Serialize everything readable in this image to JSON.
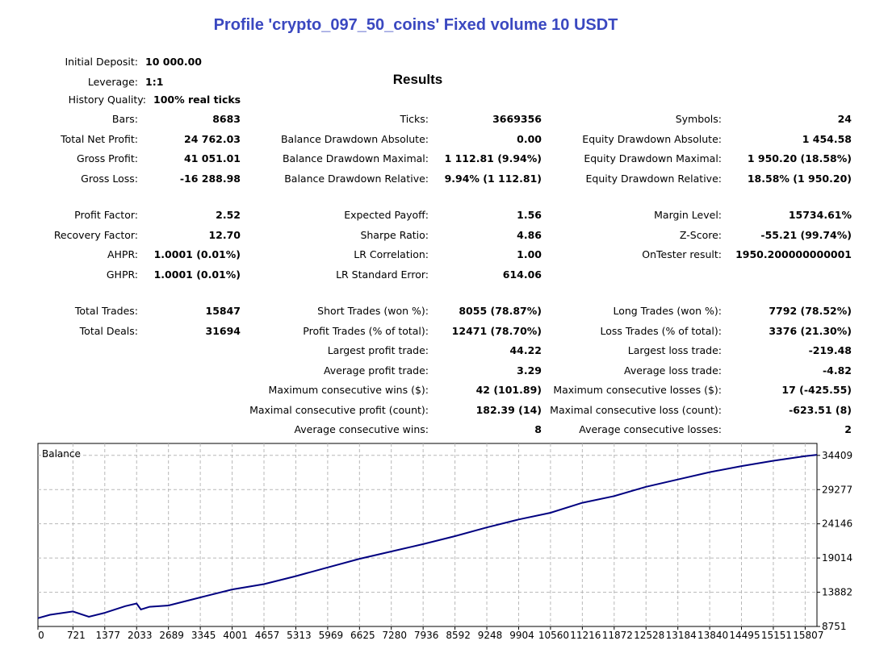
{
  "title": "Profile 'crypto_097_50_coins' Fixed volume 10 USDT",
  "results_heading": "Results",
  "deposit": {
    "initial_deposit": {
      "label": "Initial Deposit:",
      "value": "10 000.00"
    },
    "leverage": {
      "label": "Leverage:",
      "value": "1:1"
    },
    "history_quality": {
      "label": "History Quality:",
      "value": "100% real ticks"
    }
  },
  "col1": [
    {
      "label": "Bars:",
      "value": "8683"
    },
    {
      "label": "Total Net Profit:",
      "value": "24 762.03"
    },
    {
      "label": "Gross Profit:",
      "value": "41 051.01"
    },
    {
      "label": "Gross Loss:",
      "value": "-16 288.98"
    },
    {
      "label": "Profit Factor:",
      "value": "2.52"
    },
    {
      "label": "Recovery Factor:",
      "value": "12.70"
    },
    {
      "label": "AHPR:",
      "value": "1.0001 (0.01%)"
    },
    {
      "label": "GHPR:",
      "value": "1.0001 (0.01%)"
    },
    {
      "label": "Total Trades:",
      "value": "15847"
    },
    {
      "label": "Total Deals:",
      "value": "31694"
    }
  ],
  "col2": [
    {
      "label": "Ticks:",
      "value": "3669356"
    },
    {
      "label": "Balance Drawdown Absolute:",
      "value": "0.00"
    },
    {
      "label": "Balance Drawdown Maximal:",
      "value": "1 112.81 (9.94%)"
    },
    {
      "label": "Balance Drawdown Relative:",
      "value": "9.94% (1 112.81)"
    },
    {
      "label": "Expected Payoff:",
      "value": "1.56"
    },
    {
      "label": "Sharpe Ratio:",
      "value": "4.86"
    },
    {
      "label": "LR Correlation:",
      "value": "1.00"
    },
    {
      "label": "LR Standard Error:",
      "value": "614.06"
    },
    {
      "label": "Short Trades (won %):",
      "value": "8055 (78.87%)"
    },
    {
      "label": "Profit Trades (% of total):",
      "value": "12471 (78.70%)"
    },
    {
      "label": "Largest profit trade:",
      "value": "44.22"
    },
    {
      "label": "Average profit trade:",
      "value": "3.29"
    },
    {
      "label": "Maximum consecutive wins ($):",
      "value": "42 (101.89)"
    },
    {
      "label": "Maximal consecutive profit (count):",
      "value": "182.39 (14)"
    },
    {
      "label": "Average consecutive wins:",
      "value": "8"
    }
  ],
  "col3": [
    {
      "label": "Symbols:",
      "value": "24"
    },
    {
      "label": "Equity Drawdown Absolute:",
      "value": "1 454.58"
    },
    {
      "label": "Equity Drawdown Maximal:",
      "value": "1 950.20 (18.58%)"
    },
    {
      "label": "Equity Drawdown Relative:",
      "value": "18.58% (1 950.20)"
    },
    {
      "label": "Margin Level:",
      "value": "15734.61%"
    },
    {
      "label": "Z-Score:",
      "value": "-55.21 (99.74%)"
    },
    {
      "label": "OnTester result:",
      "value": "1950.200000000001"
    },
    {
      "label": "Long Trades (won %):",
      "value": "7792 (78.52%)"
    },
    {
      "label": "Loss Trades (% of total):",
      "value": "3376 (21.30%)"
    },
    {
      "label": "Largest loss trade:",
      "value": "-219.48"
    },
    {
      "label": "Average loss trade:",
      "value": "-4.82"
    },
    {
      "label": "Maximum consecutive losses ($):",
      "value": "17 (-425.55)"
    },
    {
      "label": "Maximal consecutive loss (count):",
      "value": "-623.51 (8)"
    },
    {
      "label": "Average consecutive losses:",
      "value": "2"
    }
  ],
  "chart_data": {
    "type": "line",
    "legend": "Balance",
    "series": [
      {
        "name": "Balance",
        "color": "#000080",
        "x": [
          0,
          250,
          721,
          1050,
          1377,
          1800,
          2033,
          2120,
          2300,
          2689,
          3345,
          4001,
          4657,
          5313,
          5969,
          6625,
          7280,
          7936,
          8592,
          9248,
          9904,
          10560,
          11216,
          11872,
          12528,
          13184,
          13840,
          14495,
          15151,
          15807,
          16050
        ],
        "y": [
          10000,
          10500,
          11000,
          10200,
          10800,
          11800,
          12200,
          11300,
          11700,
          11900,
          13100,
          14300,
          15100,
          16300,
          17600,
          18900,
          20000,
          21100,
          22300,
          23600,
          24800,
          25800,
          27300,
          28300,
          29700,
          30800,
          31900,
          32800,
          33600,
          34300,
          34500
        ]
      }
    ],
    "x_ticks": [
      0,
      721,
      1377,
      2033,
      2689,
      3345,
      4001,
      4657,
      5313,
      5969,
      6625,
      7280,
      7936,
      8592,
      9248,
      9904,
      10560,
      11216,
      11872,
      12528,
      13184,
      13840,
      14495,
      15151,
      15807
    ],
    "y_ticks": [
      8751,
      13882,
      19014,
      24146,
      29277,
      34409
    ],
    "xlim": [
      0,
      16050
    ],
    "ylim": [
      8751,
      36200
    ],
    "grid": true
  }
}
